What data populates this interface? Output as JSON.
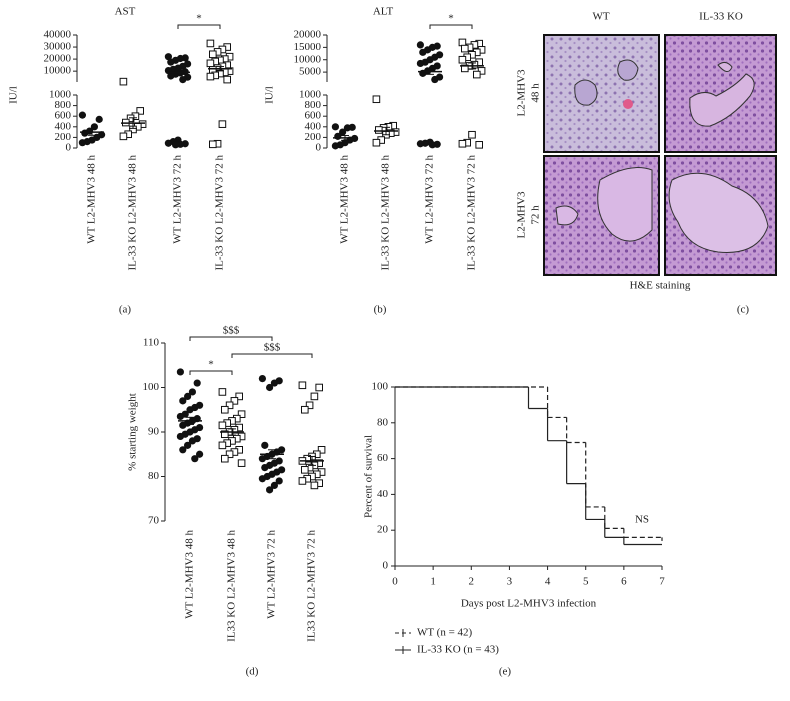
{
  "chart_data": [
    {
      "type": "strip",
      "title": "AST",
      "ylabel": "IU/l",
      "categories": [
        "WT L2-MHV3 48 h",
        "IL-33 KO L2-MHV3 48 h",
        "WT L2-MHV3 72 h",
        "IL-33 KO L2-MHV3 72 h"
      ],
      "markers": [
        "filled-circle",
        "open-square",
        "filled-circle",
        "open-square"
      ],
      "color": "#111111",
      "segments": [
        {
          "ylim": [
            0,
            1000
          ],
          "yticks": [
            0,
            200,
            400,
            600,
            800,
            1000
          ]
        },
        {
          "ylim": [
            1000,
            40000
          ],
          "yticks": [
            10000,
            20000,
            30000,
            40000
          ]
        }
      ],
      "values": [
        [
          620,
          540,
          400,
          320,
          280,
          250,
          200,
          150,
          120,
          100
        ],
        [
          1300,
          700,
          600,
          560,
          480,
          450,
          400,
          350,
          260,
          220
        ],
        [
          22000,
          21000,
          20500,
          19000,
          17500,
          16000,
          14000,
          12500,
          11500,
          10500,
          9500,
          8500,
          7500,
          6000,
          5000,
          3000,
          150,
          120,
          90,
          80,
          70,
          60
        ],
        [
          33000,
          30000,
          28000,
          26000,
          24000,
          22000,
          20000,
          19000,
          18000,
          16500,
          15000,
          14000,
          12500,
          11000,
          10000,
          9000,
          8000,
          6500,
          5500,
          3000,
          450,
          80,
          70
        ]
      ],
      "means": [
        300,
        470,
        9000,
        12000
      ],
      "sems": [
        60,
        100,
        1500,
        1800
      ],
      "brackets": [
        {
          "label": "*",
          "between": [
            2,
            3
          ]
        }
      ]
    },
    {
      "type": "strip",
      "title": "ALT",
      "ylabel": "IU/l",
      "categories": [
        "WT L2-MHV3 48 h",
        "IL-33 KO L2-MHV3 48 h",
        "WT L2-MHV3 72 h",
        "IL-33 KO L2-MHV3 72 h"
      ],
      "markers": [
        "filled-circle",
        "open-square",
        "filled-circle",
        "open-square"
      ],
      "color": "#111111",
      "segments": [
        {
          "ylim": [
            0,
            1000
          ],
          "yticks": [
            0,
            200,
            400,
            600,
            800,
            1000
          ]
        },
        {
          "ylim": [
            1000,
            20000
          ],
          "yticks": [
            5000,
            10000,
            15000,
            20000
          ]
        }
      ],
      "values": [
        [
          400,
          390,
          380,
          300,
          220,
          180,
          150,
          100,
          60,
          40
        ],
        [
          920,
          420,
          400,
          380,
          340,
          300,
          280,
          250,
          150,
          100
        ],
        [
          16000,
          15500,
          15000,
          14000,
          13000,
          12000,
          11000,
          10000,
          9000,
          8500,
          7500,
          6500,
          5500,
          4500,
          3000,
          2000,
          110,
          90,
          80,
          70,
          60
        ],
        [
          17000,
          16500,
          16000,
          15000,
          14500,
          14000,
          13000,
          12000,
          11000,
          10000,
          9000,
          8000,
          7500,
          6500,
          5500,
          4000,
          250,
          100,
          80,
          60
        ]
      ],
      "means": [
        190,
        320,
        5200,
        7500
      ],
      "sems": [
        45,
        70,
        1100,
        1200
      ],
      "brackets": [
        {
          "label": "*",
          "between": [
            2,
            3
          ]
        }
      ]
    },
    {
      "type": "strip",
      "ylabel": "% starting weight",
      "categories": [
        "WT L2-MHV3 48 h",
        "IL33 KO L2-MHV3 48 h",
        "WT L2-MHV3 72 h",
        "IL33 KO L2-MHV3 72 h"
      ],
      "markers": [
        "filled-circle",
        "open-square",
        "filled-circle",
        "open-square"
      ],
      "color": "#111111",
      "ylim": [
        70,
        110
      ],
      "yticks": [
        70,
        80,
        90,
        100,
        110
      ],
      "values": [
        [
          103.5,
          101,
          99,
          98,
          97,
          96,
          95.5,
          95,
          94,
          93.5,
          93,
          92.5,
          92,
          91.5,
          91,
          90.5,
          90,
          89.5,
          89,
          88.5,
          88,
          87,
          86,
          85,
          84
        ],
        [
          99,
          98,
          97,
          96,
          95,
          94,
          93,
          92.5,
          92,
          91.5,
          91,
          90.5,
          90,
          89.5,
          89,
          88.5,
          88,
          87.5,
          87,
          86,
          85.5,
          85,
          84,
          83
        ],
        [
          102,
          101.5,
          101,
          100,
          87,
          86,
          85.5,
          85,
          84.5,
          84,
          83.5,
          83,
          82.5,
          82,
          81.5,
          81,
          80.5,
          80,
          79.5,
          79,
          78,
          77
        ],
        [
          100.5,
          100,
          98,
          96,
          95,
          86,
          85,
          84.5,
          84,
          83.5,
          83,
          82.5,
          82,
          81.5,
          81,
          80.5,
          80,
          79.5,
          79,
          78.5,
          78
        ]
      ],
      "means": [
        92.5,
        90,
        85,
        83.5
      ],
      "sems": [
        0.8,
        0.7,
        1,
        1
      ],
      "brackets": [
        {
          "label": "$$$",
          "between": [
            0,
            2
          ]
        },
        {
          "label": "$$$",
          "between": [
            1,
            3
          ]
        },
        {
          "label": "*",
          "between": [
            0,
            1
          ]
        }
      ]
    },
    {
      "type": "step",
      "xlabel": "Days post L2-MHV3 infection",
      "ylabel": "Percent of survival",
      "xlim": [
        0,
        7
      ],
      "xticks": [
        0,
        1,
        2,
        3,
        4,
        5,
        6,
        7
      ],
      "ylim": [
        0,
        100
      ],
      "yticks": [
        0,
        20,
        40,
        60,
        80,
        100
      ],
      "annotation": "NS",
      "series": [
        {
          "name": "WT (n = 42)",
          "color": "#222222",
          "dash": true,
          "x": [
            0,
            4,
            4.5,
            5,
            5.5,
            6,
            7
          ],
          "values": [
            100,
            83,
            69,
            33,
            21,
            16,
            14
          ]
        },
        {
          "name": "IL-33 KO (n = 43)",
          "color": "#222222",
          "dash": false,
          "x": [
            0,
            3.5,
            4,
            4.5,
            5,
            5.5,
            6,
            7
          ],
          "values": [
            100,
            88,
            70,
            46,
            26,
            16,
            12,
            12
          ]
        }
      ]
    }
  ],
  "figure": {
    "panel_labels": [
      "(a)",
      "(b)",
      "(c)",
      "(d)",
      "(e)"
    ],
    "histology": {
      "columns": [
        "WT",
        "IL-33 KO"
      ],
      "rows": [
        [
          "L2-MHV3",
          "48 h"
        ],
        [
          "L2-MHV3",
          "72 h"
        ]
      ],
      "caption": "H&E staining"
    }
  }
}
